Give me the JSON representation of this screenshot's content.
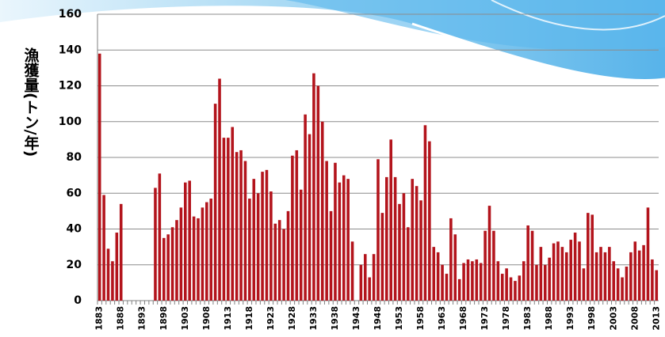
{
  "chart_data": {
    "type": "bar",
    "ylabel": "漁獲量(トン/年)",
    "categories": [
      "1883",
      null,
      null,
      null,
      null,
      "1888",
      null,
      null,
      null,
      null,
      "1893",
      null,
      null,
      null,
      null,
      "1898",
      null,
      null,
      null,
      null,
      "1903",
      null,
      null,
      null,
      null,
      "1908",
      null,
      null,
      null,
      null,
      "1913",
      null,
      null,
      null,
      null,
      "1918",
      null,
      null,
      null,
      null,
      "1923",
      null,
      null,
      null,
      null,
      "1928",
      null,
      null,
      null,
      null,
      "1933",
      null,
      null,
      null,
      null,
      "1938",
      null,
      null,
      null,
      null,
      "1943",
      null,
      null,
      null,
      null,
      "1948",
      null,
      null,
      null,
      null,
      "1953",
      null,
      null,
      null,
      null,
      "1958",
      null,
      null,
      null,
      null,
      "1963",
      null,
      null,
      null,
      null,
      "1968",
      null,
      null,
      null,
      null,
      "1973",
      null,
      null,
      null,
      null,
      "1978",
      null,
      null,
      null,
      null,
      "1983",
      null,
      null,
      null,
      null,
      "1988",
      null,
      null,
      null,
      null,
      "1993",
      null,
      null,
      null,
      null,
      "1998",
      null,
      null,
      null,
      null,
      "2003",
      null,
      null,
      null,
      null,
      "2008",
      null,
      null,
      null,
      null,
      "2013"
    ],
    "values": [
      138,
      59,
      29,
      22,
      38,
      54,
      null,
      null,
      null,
      null,
      null,
      null,
      null,
      63,
      71,
      35,
      37,
      41,
      45,
      52,
      66,
      67,
      47,
      46,
      52,
      55,
      57,
      110,
      124,
      91,
      91,
      97,
      83,
      84,
      78,
      57,
      68,
      60,
      72,
      73,
      61,
      43,
      45,
      40,
      50,
      81,
      84,
      62,
      104,
      93,
      127,
      120,
      100,
      78,
      50,
      77,
      66,
      70,
      68,
      33,
      null,
      20,
      26,
      13,
      26,
      79,
      49,
      69,
      90,
      69,
      54,
      60,
      41,
      68,
      64,
      56,
      98,
      89,
      30,
      27,
      20,
      15,
      46,
      37,
      12,
      21,
      23,
      22,
      23,
      21,
      39,
      53,
      39,
      22,
      15,
      18,
      13,
      11,
      14,
      22,
      42,
      39,
      20,
      30,
      20,
      24,
      32,
      33,
      30,
      27,
      34,
      38,
      33,
      18,
      49,
      48,
      27,
      30,
      27,
      30,
      22,
      18,
      13,
      19,
      27,
      33,
      28,
      31,
      52,
      23,
      17
    ],
    "color": "#b3141c",
    "ylim": [
      0,
      160
    ],
    "yticks": [
      0,
      20,
      40,
      60,
      80,
      100,
      120,
      140,
      160
    ],
    "grid": true
  }
}
